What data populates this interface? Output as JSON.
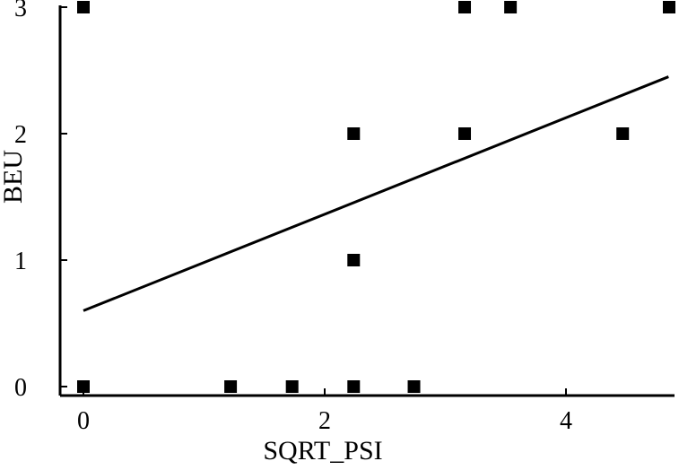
{
  "chart_data": {
    "type": "scatter",
    "xlabel": "SQRT_PSI",
    "ylabel": "BEU",
    "xlim": [
      -0.1,
      4.9
    ],
    "ylim": [
      -0.05,
      3.05
    ],
    "xticks": [
      0,
      2,
      4
    ],
    "yticks": [
      0,
      1,
      2,
      3
    ],
    "x_tick_labels": [
      "0",
      "2",
      "4"
    ],
    "y_tick_labels": [
      "0",
      "1",
      "2",
      "3"
    ],
    "grid": false,
    "legend": "none",
    "series": [
      {
        "points": [
          {
            "x": 0.0,
            "y": 3
          },
          {
            "x": 0.0,
            "y": 0
          },
          {
            "x": 1.22,
            "y": 0
          },
          {
            "x": 1.73,
            "y": 0
          },
          {
            "x": 2.24,
            "y": 0
          },
          {
            "x": 2.24,
            "y": 1
          },
          {
            "x": 2.24,
            "y": 2
          },
          {
            "x": 2.74,
            "y": 0
          },
          {
            "x": 3.16,
            "y": 3
          },
          {
            "x": 3.16,
            "y": 2
          },
          {
            "x": 3.54,
            "y": 3
          },
          {
            "x": 4.47,
            "y": 2
          },
          {
            "x": 4.9,
            "y": 3
          }
        ]
      }
    ],
    "fit_line": {
      "x": [
        0.0,
        4.85
      ],
      "y": [
        0.6,
        2.45
      ]
    }
  }
}
